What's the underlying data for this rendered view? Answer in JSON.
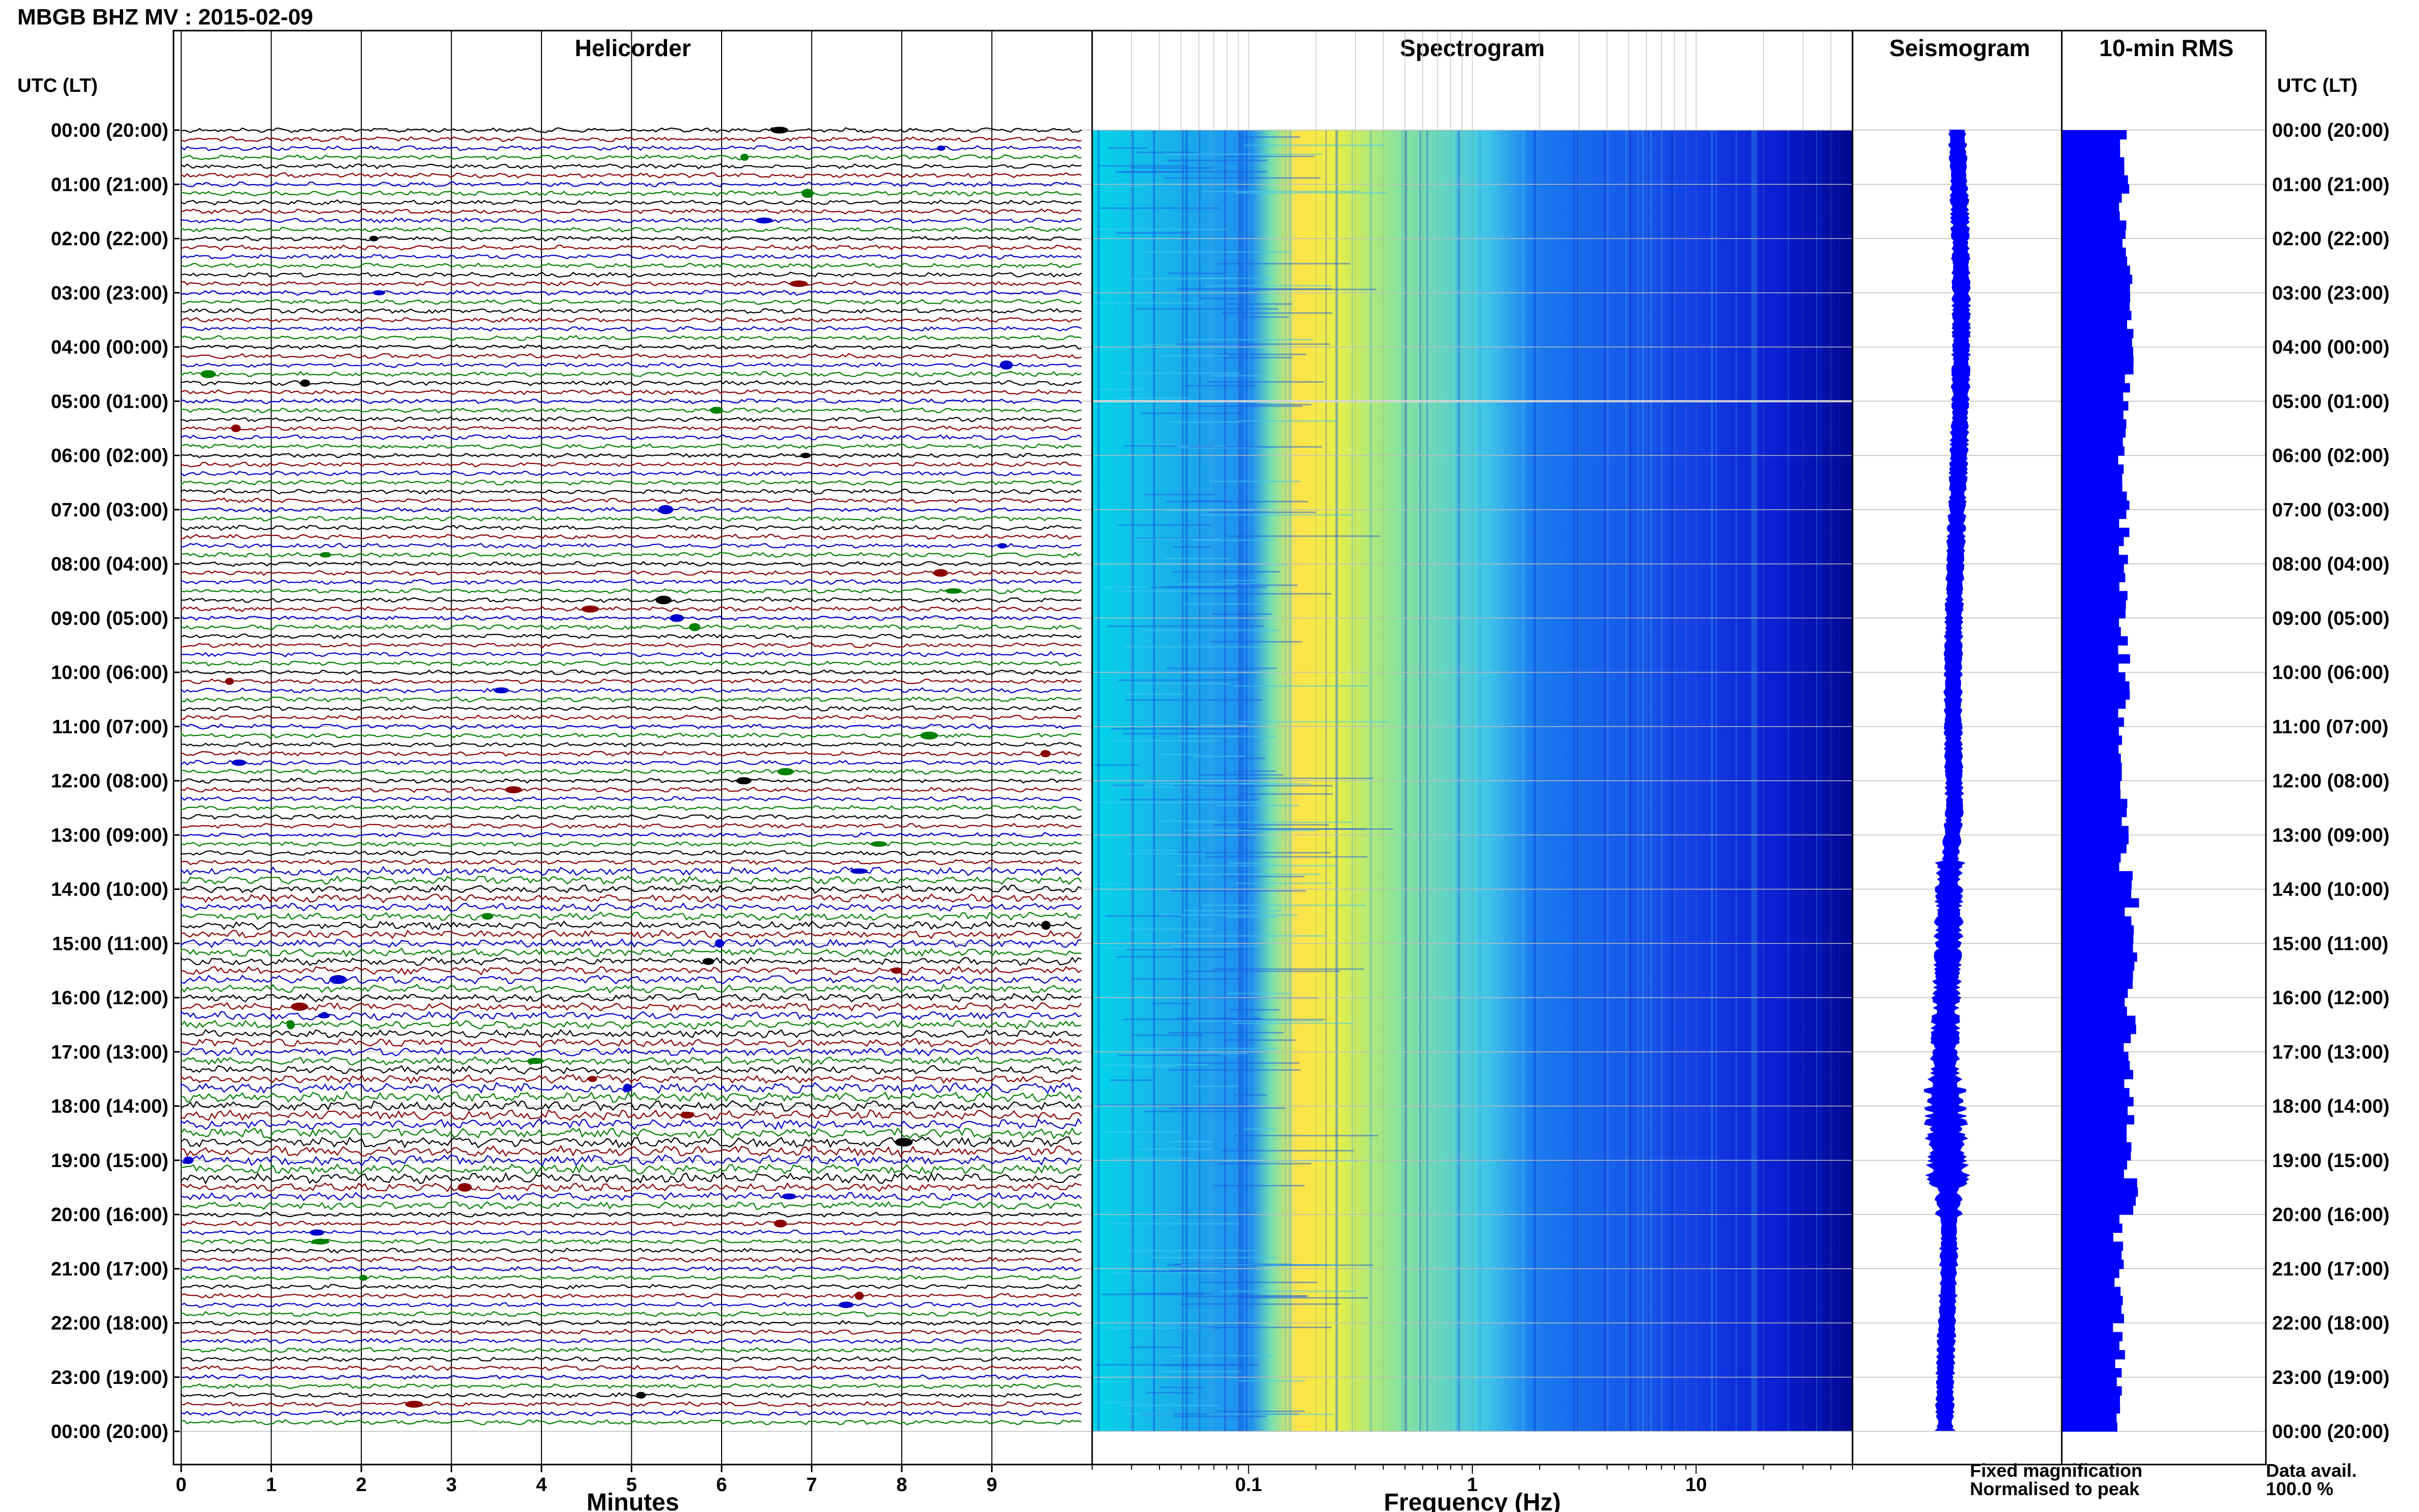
{
  "title": "MBGB BHZ MV : 2015-02-09",
  "panels": {
    "helicorder": "Helicorder",
    "spectrogram": "Spectrogram",
    "seismogram": "Seismogram",
    "rms": "10-min RMS"
  },
  "time_axis_label": "UTC (LT)",
  "time_ticks": [
    "00:00 (20:00)",
    "01:00 (21:00)",
    "02:00 (22:00)",
    "03:00 (23:00)",
    "04:00 (00:00)",
    "05:00 (01:00)",
    "06:00 (02:00)",
    "07:00 (03:00)",
    "08:00 (04:00)",
    "09:00 (05:00)",
    "10:00 (06:00)",
    "11:00 (07:00)",
    "12:00 (08:00)",
    "13:00 (09:00)",
    "14:00 (10:00)",
    "15:00 (11:00)",
    "16:00 (12:00)",
    "17:00 (13:00)",
    "18:00 (14:00)",
    "19:00 (15:00)",
    "20:00 (16:00)",
    "21:00 (17:00)",
    "22:00 (18:00)",
    "23:00 (19:00)",
    "00:00 (20:00)"
  ],
  "minutes_ticks": [
    "0",
    "1",
    "2",
    "3",
    "4",
    "5",
    "6",
    "7",
    "8",
    "9"
  ],
  "minutes_label": "Minutes",
  "freq_ticks": [
    "0.1",
    "1",
    "10"
  ],
  "freq_label": "Frequency (Hz)",
  "legend": {
    "fixed": "Fixed magnification",
    "normalised": "Normalised to peak",
    "fixed_color": "#0000ff",
    "normalised_color": "#ff0000"
  },
  "data_avail": {
    "label": "Data avail.",
    "value": "100.0 %"
  },
  "colors": {
    "trace_cycle": [
      "#000000",
      "#8b0000",
      "#0000cd",
      "#008000"
    ],
    "seismogram": "#0000ff",
    "rms": "#0000ff"
  },
  "chart_data": [
    {
      "type": "line",
      "title": "Helicorder",
      "xlabel": "Minutes",
      "x_ticks": [
        0,
        1,
        2,
        3,
        4,
        5,
        6,
        7,
        8,
        9
      ],
      "xlim": [
        0,
        10
      ],
      "ylim_hours_utc": [
        0,
        24
      ],
      "rows": 144,
      "row_minutes": 10,
      "series": [
        {
          "name": "Fixed magnification"
        }
      ]
    },
    {
      "type": "heatmap",
      "title": "Spectrogram",
      "xlabel": "Frequency (Hz)",
      "x_scale": "log",
      "xlim": [
        0.02,
        50
      ],
      "x_ticks": [
        0.1,
        1,
        10
      ],
      "peak_frequency_hz": 0.25,
      "ylim_hours_utc": [
        0,
        24
      ]
    },
    {
      "type": "line",
      "title": "Seismogram",
      "ylim_hours_utc": [
        0,
        24
      ]
    },
    {
      "type": "bar",
      "title": "10-min RMS",
      "orientation": "horizontal",
      "bins": 144,
      "bin_minutes": 10,
      "ylim_hours_utc": [
        0,
        24
      ]
    }
  ]
}
